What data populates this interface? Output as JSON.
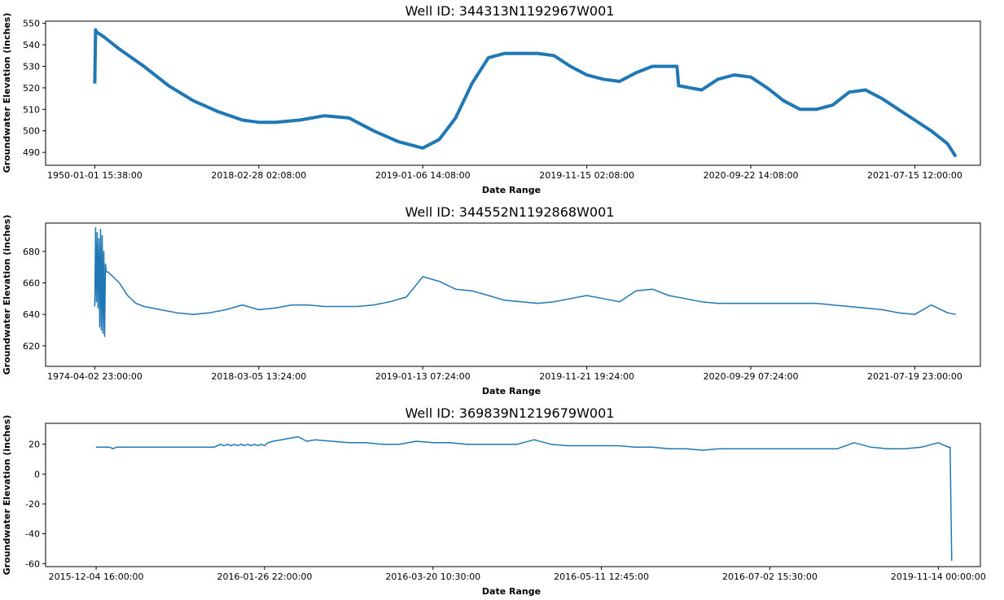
{
  "chart_data": [
    {
      "type": "line",
      "title": "Well ID: 344313N1192967W001",
      "xlabel": "Date Range",
      "ylabel": "Groundwater Elevation (inches)",
      "xticks": [
        "1950-01-01 15:38:00",
        "2018-02-28 02:08:00",
        "2019-01-06 14:08:00",
        "2019-11-15 02:08:00",
        "2020-09-22 14:08:00",
        "2021-07-15 12:00:00"
      ],
      "yticks": [
        490,
        500,
        510,
        520,
        530,
        540,
        550
      ],
      "ylim": [
        484,
        551
      ],
      "xlim": [
        -0.3,
        5.4
      ],
      "grid": false,
      "color": "#1f77b4",
      "series": [
        {
          "x": [
            0,
            0.005,
            0.01,
            0.05,
            0.15,
            0.3,
            0.45,
            0.6,
            0.75,
            0.9,
            1.0,
            1.1,
            1.25,
            1.4,
            1.55,
            1.7,
            1.85,
            2.0,
            2.1,
            2.2,
            2.3,
            2.4,
            2.5,
            2.6,
            2.7,
            2.8,
            2.9,
            3.0,
            3.1,
            3.2,
            3.3,
            3.4,
            3.5,
            3.55,
            3.56,
            3.7,
            3.8,
            3.9,
            4.0,
            4.1,
            4.2,
            4.3,
            4.4,
            4.5,
            4.6,
            4.7,
            4.8,
            4.9,
            5.0,
            5.1,
            5.2,
            5.25
          ],
          "y": [
            522,
            547,
            546,
            544,
            538,
            530,
            521,
            514,
            509,
            505,
            504,
            504,
            505,
            507,
            506,
            500,
            495,
            492,
            496,
            506,
            522,
            534,
            536,
            536,
            536,
            535,
            530,
            526,
            524,
            523,
            527,
            530,
            530,
            530,
            521,
            519,
            524,
            526,
            525,
            520,
            514,
            510,
            510,
            512,
            518,
            519,
            515,
            510,
            505,
            500,
            494,
            488
          ]
        }
      ]
    },
    {
      "type": "line",
      "title": "Well ID: 344552N1192868W001",
      "xlabel": "Date Range",
      "ylabel": "Groundwater Elevation (inches)",
      "xticks": [
        "1974-04-02 23:00:00",
        "2018-03-05 13:24:00",
        "2019-01-13 07:24:00",
        "2019-11-21 19:24:00",
        "2020-09-29 07:24:00",
        "2021-07-19 23:00:00"
      ],
      "yticks": [
        620,
        640,
        660,
        680
      ],
      "ylim": [
        607,
        698
      ],
      "xlim": [
        -0.3,
        5.4
      ],
      "grid": false,
      "color": "#1f77b4",
      "series": [
        {
          "x": [
            0,
            0.005,
            0.01,
            0.015,
            0.02,
            0.025,
            0.03,
            0.035,
            0.04,
            0.045,
            0.05,
            0.055,
            0.06,
            0.065,
            0.07,
            0.08,
            0.1,
            0.15,
            0.2,
            0.25,
            0.3,
            0.35,
            0.4,
            0.5,
            0.6,
            0.7,
            0.8,
            0.9,
            1.0,
            1.1,
            1.2,
            1.3,
            1.4,
            1.5,
            1.6,
            1.7,
            1.8,
            1.9,
            2.0,
            2.1,
            2.2,
            2.3,
            2.4,
            2.5,
            2.6,
            2.7,
            2.8,
            2.9,
            3.0,
            3.1,
            3.2,
            3.3,
            3.4,
            3.5,
            3.6,
            3.7,
            3.8,
            3.9,
            4.0,
            4.1,
            4.2,
            4.3,
            4.4,
            4.5,
            4.6,
            4.7,
            4.8,
            4.9,
            5.0,
            5.1,
            5.2,
            5.25
          ],
          "y": [
            645,
            695,
            648,
            692,
            644,
            688,
            632,
            694,
            630,
            690,
            628,
            680,
            626,
            672,
            667,
            667,
            665,
            660,
            652,
            647,
            645,
            644,
            643,
            641,
            640,
            641,
            643,
            646,
            643,
            644,
            646,
            646,
            645,
            645,
            645,
            646,
            648,
            651,
            664,
            661,
            656,
            655,
            652,
            649,
            648,
            647,
            648,
            650,
            652,
            650,
            648,
            655,
            656,
            652,
            650,
            648,
            647,
            647,
            647,
            647,
            647,
            647,
            647,
            646,
            645,
            644,
            643,
            641,
            640,
            646,
            641,
            640
          ]
        }
      ]
    },
    {
      "type": "line",
      "title": "Well ID: 369839N1219679W001",
      "xlabel": "Date Range",
      "ylabel": "Groundwater Elevation (inches)",
      "xticks": [
        "2015-12-04 16:00:00",
        "2016-01-26 22:00:00",
        "2016-03-20 10:30:00",
        "2016-05-11 12:45:00",
        "2016-07-02 15:30:00",
        "2019-11-14 00:00:00"
      ],
      "yticks": [
        -60,
        -40,
        -20,
        0,
        20
      ],
      "ylim": [
        -62,
        34
      ],
      "xlim": [
        -0.3,
        5.25
      ],
      "grid": false,
      "color": "#1f77b4",
      "series": [
        {
          "x": [
            0,
            0.08,
            0.1,
            0.12,
            0.14,
            0.3,
            0.5,
            0.7,
            0.72,
            0.74,
            0.76,
            0.78,
            0.8,
            0.82,
            0.84,
            0.86,
            0.88,
            0.9,
            0.92,
            0.94,
            0.96,
            0.98,
            1.0,
            1.02,
            1.05,
            1.1,
            1.15,
            1.2,
            1.25,
            1.3,
            1.4,
            1.5,
            1.6,
            1.7,
            1.8,
            1.9,
            2.0,
            2.1,
            2.2,
            2.3,
            2.4,
            2.5,
            2.6,
            2.7,
            2.8,
            2.9,
            3.0,
            3.1,
            3.2,
            3.3,
            3.4,
            3.5,
            3.6,
            3.7,
            3.8,
            3.9,
            4.0,
            4.1,
            4.2,
            4.3,
            4.4,
            4.5,
            4.6,
            4.7,
            4.8,
            4.9,
            5.0,
            5.06,
            5.07,
            5.08
          ],
          "y": [
            18,
            18,
            17,
            18,
            18,
            18,
            18,
            18,
            19,
            20,
            19,
            20,
            19,
            20,
            19,
            20,
            19,
            20,
            19,
            20,
            19,
            20,
            19,
            21,
            22,
            23,
            24,
            25,
            22,
            23,
            22,
            21,
            21,
            20,
            20,
            22,
            21,
            21,
            20,
            20,
            20,
            20,
            23,
            20,
            19,
            19,
            19,
            19,
            18,
            18,
            17,
            17,
            16,
            17,
            17,
            17,
            17,
            17,
            17,
            17,
            17,
            21,
            18,
            17,
            17,
            18,
            21,
            18,
            18,
            -58
          ]
        }
      ]
    }
  ]
}
